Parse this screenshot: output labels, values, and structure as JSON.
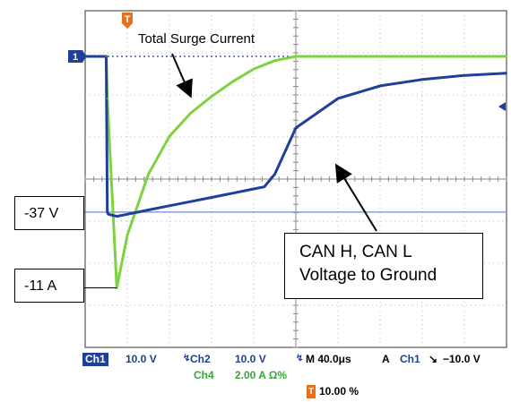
{
  "chart_data": {
    "type": "line",
    "title": "",
    "xlabel": "",
    "ylabel": "",
    "grid": true,
    "x_divisions": 10,
    "y_divisions": 8,
    "x_unit": "μs",
    "time_per_div": 40,
    "x_range": [
      0,
      400
    ],
    "series": [
      {
        "channel": "Ch2",
        "color": "#4fbf3a",
        "scale": "10.0 V/div",
        "x": [
          0,
          20,
          21,
          22,
          30,
          40,
          60,
          80,
          100,
          120,
          140,
          160,
          170,
          180,
          200,
          240,
          280,
          320,
          360,
          400
        ],
        "y": [
          0,
          0,
          -37,
          -37.5,
          -38,
          -37.5,
          -36.5,
          -35.5,
          -34.5,
          -33.5,
          -32.5,
          -31.5,
          -31,
          -28,
          -17,
          -10,
          -7,
          -5.5,
          -4.5,
          -4
        ]
      },
      {
        "channel": "Ch4",
        "color": "#7fd23f",
        "scale": "2.00 A",
        "x": [
          0,
          20,
          21,
          25,
          30,
          40,
          60,
          80,
          100,
          120,
          140,
          160,
          180,
          200,
          240,
          280,
          320,
          360,
          400
        ],
        "y": [
          0,
          0,
          -2,
          -6,
          -11,
          -8.5,
          -5.6,
          -3.8,
          -2.7,
          -1.9,
          -1.2,
          -0.6,
          -0.2,
          0,
          0,
          0,
          0,
          0,
          0
        ]
      }
    ],
    "reference_levels": [
      {
        "label": "-37 V",
        "series": "Ch2"
      }
    ],
    "annotations": {
      "total_surge": "Total Surge Current",
      "v37": "-37 V",
      "a11": "-11 A",
      "can_line1": "CAN H, CAN L",
      "can_line2": "Voltage to Ground"
    }
  },
  "status": {
    "ch1_label": "Ch1",
    "ch1_value": "10.0 V",
    "ch2_label": "Ch2",
    "ch2_value": "10.0 V",
    "timebase": "M 40.0μs",
    "trigger_mode": "A",
    "trig_ch": "Ch1",
    "trig_slope": "↘",
    "trig_level": "−10.0 V",
    "ch4_label": "Ch4",
    "ch4_value": "2.00 A Ω%",
    "trigger_position": "10.00 %"
  },
  "markers": {
    "trigger_marker": "T",
    "ground_marker": "1"
  },
  "colors": {
    "grid": "#b4b4b4",
    "voltage": "#1e3f9a",
    "current": "#7fd23f",
    "ch1_badge": "#1e3f9a",
    "trigger": "#e8701a",
    "bezel": "#9bbfe0"
  }
}
